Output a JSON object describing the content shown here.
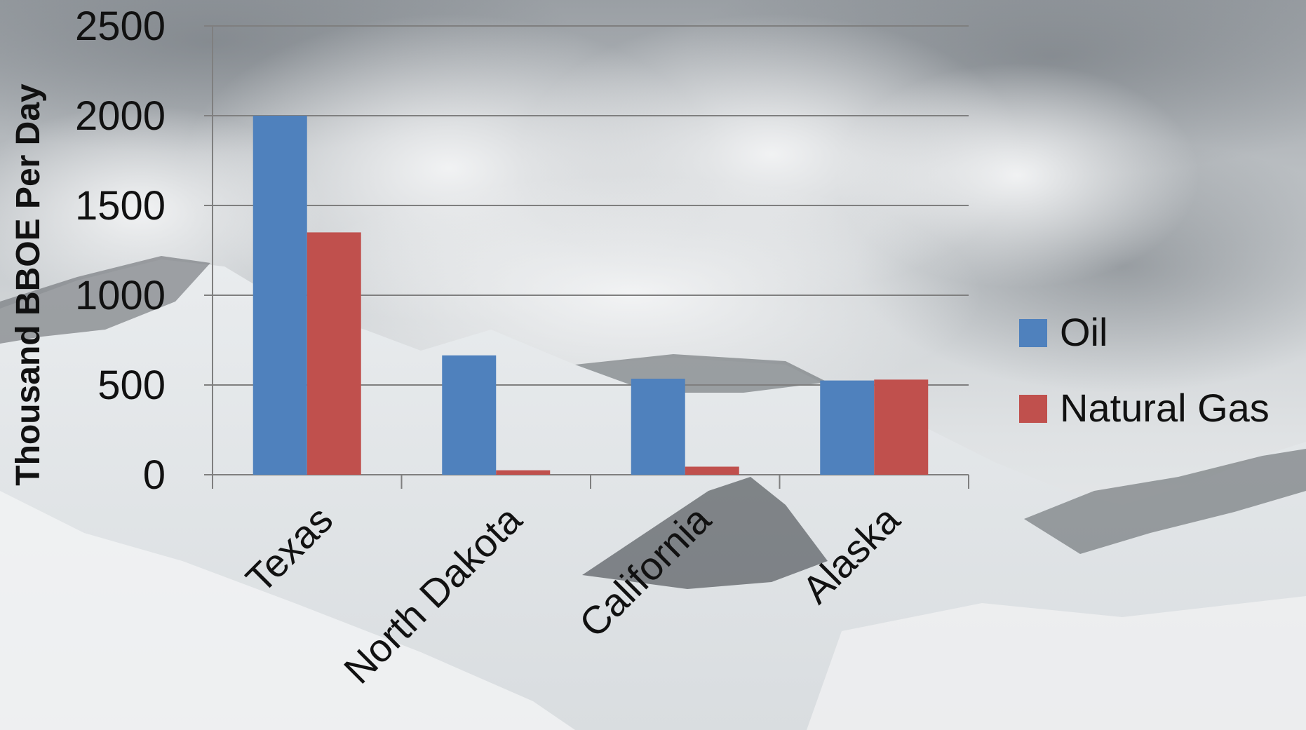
{
  "chart_data": {
    "type": "bar",
    "title": "",
    "xlabel": "",
    "ylabel": "Thousand BBOE Per Day",
    "categories": [
      "Texas",
      "North Dakota",
      "California",
      "Alaska"
    ],
    "series": [
      {
        "name": "Oil",
        "values": [
          2000,
          665,
          535,
          525
        ],
        "color": "#4f81bd"
      },
      {
        "name": "Natural Gas",
        "values": [
          1350,
          25,
          45,
          530
        ],
        "color": "#c0504d"
      }
    ],
    "ylim": [
      0,
      2500
    ],
    "yticks": [
      0,
      500,
      1000,
      1500,
      2000,
      2500
    ],
    "grid": true,
    "legend_position": "right",
    "background": "snowy-mountain-photo"
  }
}
